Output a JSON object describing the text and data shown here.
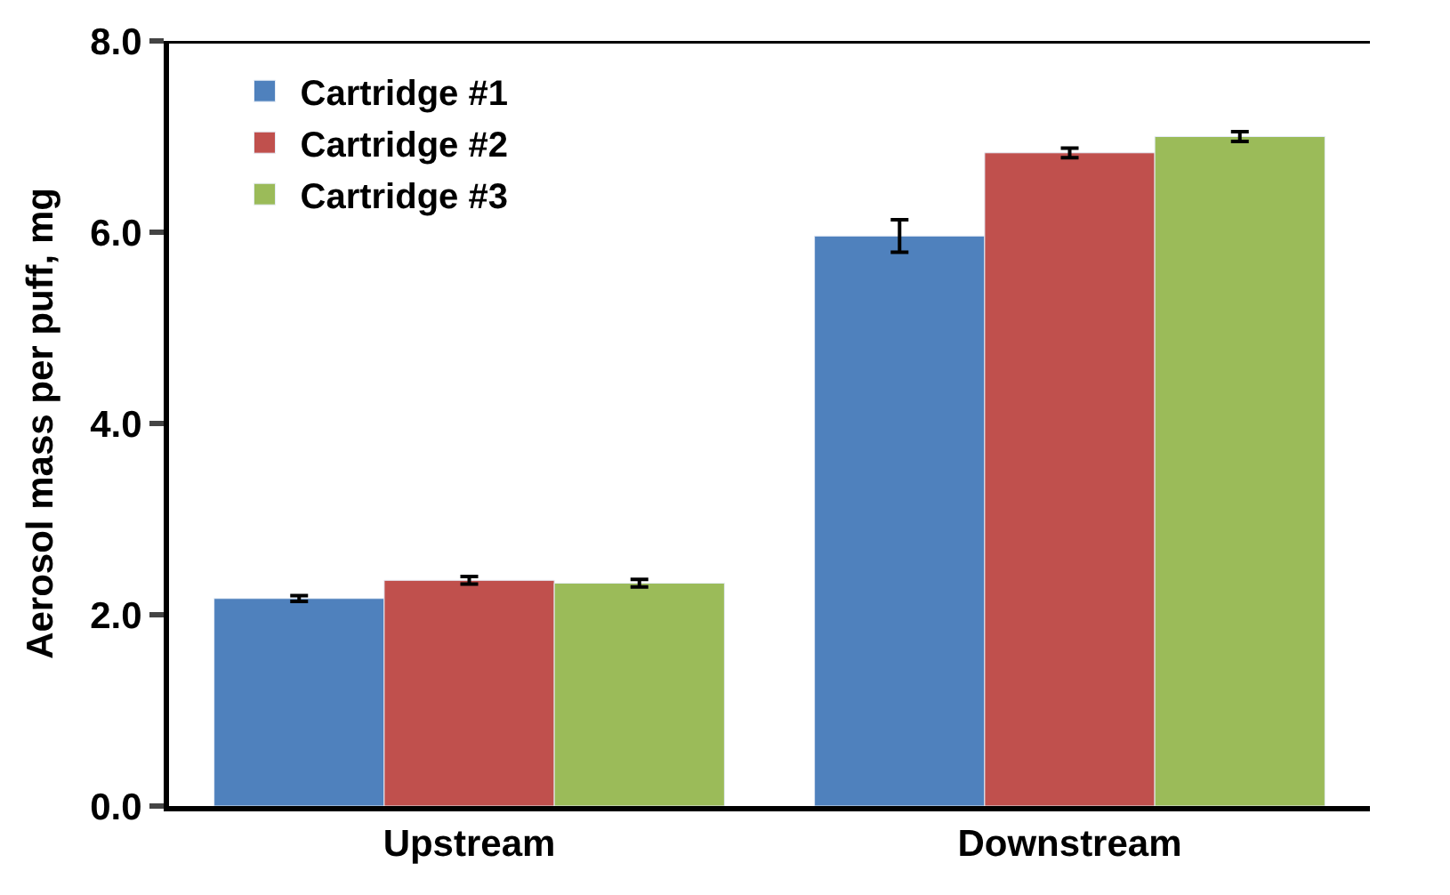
{
  "chart_data": {
    "type": "bar",
    "ylabel": "Aerosol mass per puff, mg",
    "categories": [
      "Upstream",
      "Downstream"
    ],
    "series": [
      {
        "name": "Cartridge #1",
        "color": "#4f81bd",
        "values": [
          2.17,
          5.96
        ],
        "errors": [
          0.03,
          0.17
        ]
      },
      {
        "name": "Cartridge #2",
        "color": "#c0504d",
        "values": [
          2.36,
          6.83
        ],
        "errors": [
          0.04,
          0.05
        ]
      },
      {
        "name": "Cartridge #3",
        "color": "#9bbb59",
        "values": [
          2.33,
          7.0
        ],
        "errors": [
          0.04,
          0.05
        ]
      }
    ],
    "ylim": [
      0,
      8
    ],
    "yticks": [
      {
        "value": 0,
        "label": "0.0"
      },
      {
        "value": 2,
        "label": "2.0"
      },
      {
        "value": 4,
        "label": "4.0"
      },
      {
        "value": 6,
        "label": "6.0"
      },
      {
        "value": 8,
        "label": "8.0"
      }
    ],
    "legend": "top left"
  }
}
